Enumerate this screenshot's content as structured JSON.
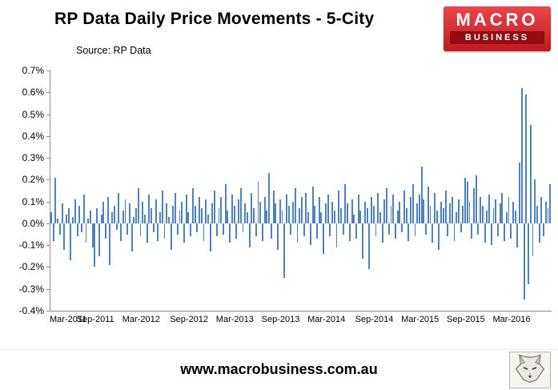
{
  "header": {
    "title": "RP Data Daily Price Movements - 5-City",
    "source": "Source: RP Data",
    "logo": {
      "line1": "MACRO",
      "line2": "BUSINESS",
      "bg": "#c01a20"
    }
  },
  "footer": {
    "url": "www.macrobusiness.com.au"
  },
  "chart_data": {
    "type": "bar",
    "title": "RP Data Daily Price Movements - 5-City",
    "source": "Source: RP Data",
    "xlabel": "",
    "ylabel": "",
    "unit": "%",
    "ylim": [
      -0.4,
      0.7
    ],
    "ytick_step": 0.1,
    "yticks": [
      "0.7%",
      "0.6%",
      "0.5%",
      "0.4%",
      "0.3%",
      "0.2%",
      "0.1%",
      "0.0%",
      "-0.1%",
      "-0.2%",
      "-0.3%",
      "-0.4%"
    ],
    "xticks": [
      "Mar-2011",
      "Sep-2011",
      "Mar-2012",
      "Sep-2012",
      "Mar-2013",
      "Sep-2013",
      "Mar-2014",
      "Sep-2014",
      "Mar-2015",
      "Sep-2015",
      "Mar-2016"
    ],
    "xtick_indices": [
      0,
      21,
      42,
      64,
      85,
      106,
      127,
      149,
      170,
      191,
      212
    ],
    "grid": false,
    "legend": false,
    "bar_color": "#4f81bd",
    "values": [
      0.05,
      -0.08,
      0.21,
      0.02,
      -0.05,
      0.09,
      -0.12,
      0.04,
      0.07,
      -0.17,
      0.03,
      0.11,
      -0.06,
      0.08,
      -0.04,
      0.13,
      -0.09,
      0.02,
      0.06,
      -0.11,
      -0.2,
      0.07,
      -0.15,
      0.04,
      0.1,
      -0.07,
      0.12,
      -0.19,
      0.05,
      0.08,
      -0.03,
      0.14,
      -0.08,
      0.06,
      0.11,
      -0.05,
      0.09,
      -0.13,
      0.03,
      0.07,
      0.16,
      -0.06,
      0.1,
      0.04,
      -0.09,
      0.13,
      0.07,
      -0.04,
      0.11,
      -0.08,
      0.05,
      0.15,
      -0.07,
      0.09,
      0.03,
      -0.12,
      0.08,
      0.14,
      -0.05,
      0.06,
      0.1,
      -0.09,
      0.13,
      0.05,
      -0.06,
      0.16,
      0.08,
      -0.04,
      0.12,
      0.07,
      -0.08,
      0.11,
      0.04,
      -0.13,
      0.09,
      0.15,
      -0.06,
      0.07,
      0.12,
      -0.05,
      0.18,
      0.06,
      -0.09,
      0.13,
      0.08,
      -0.07,
      0.11,
      0.16,
      -0.04,
      0.09,
      0.05,
      -0.11,
      0.14,
      0.07,
      -0.06,
      0.19,
      0.1,
      -0.08,
      0.12,
      0.06,
      0.23,
      -0.07,
      0.15,
      0.09,
      -0.12,
      0.11,
      0.06,
      -0.25,
      0.13,
      0.08,
      -0.05,
      0.1,
      0.16,
      -0.09,
      0.07,
      0.12,
      -0.06,
      0.14,
      0.05,
      -0.1,
      0.17,
      0.08,
      -0.07,
      0.12,
      0.05,
      -0.14,
      0.09,
      0.13,
      -0.06,
      0.1,
      0.06,
      -0.11,
      0.15,
      0.07,
      -0.05,
      0.18,
      0.09,
      -0.08,
      0.11,
      0.04,
      -0.07,
      0.13,
      0.06,
      -0.16,
      0.1,
      0.07,
      -0.21,
      0.12,
      0.08,
      -0.06,
      0.14,
      0.05,
      -0.09,
      0.11,
      0.16,
      -0.05,
      0.08,
      0.13,
      -0.07,
      0.06,
      0.1,
      -0.04,
      0.15,
      0.07,
      -0.08,
      0.12,
      0.18,
      -0.06,
      0.09,
      0.13,
      0.26,
      0.11,
      -0.05,
      0.17,
      0.08,
      -0.09,
      0.14,
      0.06,
      -0.12,
      0.1,
      0.07,
      0.15,
      -0.06,
      0.09,
      0.12,
      -0.08,
      0.05,
      0.11,
      -0.04,
      0.08,
      0.21,
      0.19,
      0.1,
      -0.07,
      0.16,
      0.22,
      -0.05,
      0.12,
      0.08,
      -0.09,
      0.06,
      0.13,
      -0.1,
      0.07,
      0.11,
      -0.06,
      0.09,
      0.14,
      -0.08,
      0.05,
      0.12,
      -0.07,
      0.1,
      0.06,
      -0.11,
      0.28,
      0.62,
      -0.35,
      0.59,
      -0.28,
      0.45,
      -0.15,
      0.2,
      0.08,
      -0.09,
      0.12,
      -0.06,
      0.1,
      0.07,
      0.18
    ]
  }
}
